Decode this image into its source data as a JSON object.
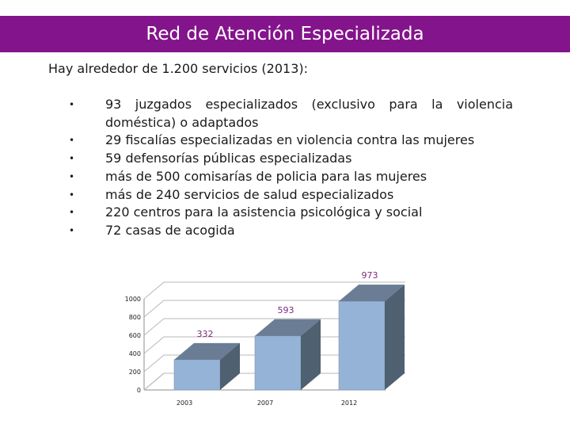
{
  "header": {
    "title": "Red de Atención Especializada"
  },
  "intro": "Hay alrededor de 1.200 servicios (2013):",
  "bullets": [
    "93 juzgados especializados (exclusivo para la violencia doméstica) o adaptados",
    "29 fiscalías especializadas en violencia contra las mujeres",
    "59 defensorías públicas especializadas",
    "más de 500 comisarías de policia para las mujeres",
    "más de 240 servicios de salud especializados",
    "220 centros para la asistencia psicológica y social",
    "72 casas de acogida"
  ],
  "colors": {
    "header_bg": "#84148b",
    "bar_front": "#95b3d7",
    "bar_top": "#6a7d95",
    "bar_side": "#4f6070",
    "label": "#7b2a7d"
  },
  "chart_data": {
    "type": "bar",
    "categories": [
      "2003",
      "2007",
      "2012"
    ],
    "values": [
      332,
      593,
      973
    ],
    "data_labels": [
      "332",
      "593",
      "973"
    ],
    "y_ticks": [
      "0",
      "200",
      "400",
      "600",
      "800",
      "1000"
    ],
    "ylim": [
      0,
      1000
    ],
    "title": "",
    "xlabel": "",
    "ylabel": "",
    "grid": true,
    "style": "3d"
  }
}
